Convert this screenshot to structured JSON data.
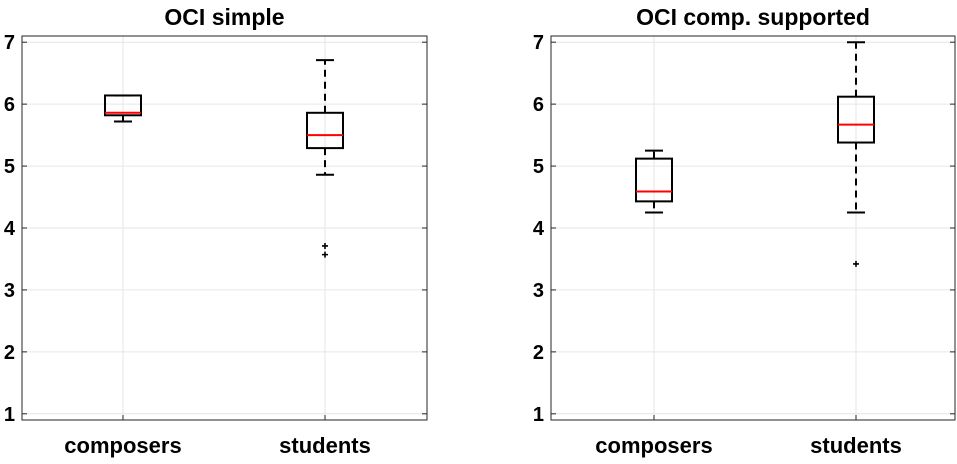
{
  "chart_data": [
    {
      "type": "box",
      "title": "OCI simple",
      "categories": [
        "composers",
        "students"
      ],
      "ylim": [
        0.9,
        7.1
      ],
      "yticks": [
        1,
        2,
        3,
        4,
        5,
        6,
        7
      ],
      "grid": true,
      "boxes": [
        {
          "category": "composers",
          "whisker_low": 5.72,
          "q1": 5.82,
          "median": 5.86,
          "q3": 6.14,
          "whisker_high": 6.14,
          "outliers": []
        },
        {
          "category": "students",
          "whisker_low": 4.86,
          "q1": 5.29,
          "median": 5.5,
          "q3": 5.86,
          "whisker_high": 6.71,
          "outliers": [
            3.57,
            3.71
          ]
        }
      ]
    },
    {
      "type": "box",
      "title": "OCI comp. supported",
      "categories": [
        "composers",
        "students"
      ],
      "ylim": [
        0.9,
        7.1
      ],
      "yticks": [
        1,
        2,
        3,
        4,
        5,
        6,
        7
      ],
      "grid": true,
      "boxes": [
        {
          "category": "composers",
          "whisker_low": 4.25,
          "q1": 4.43,
          "median": 4.59,
          "q3": 5.12,
          "whisker_high": 5.25,
          "outliers": []
        },
        {
          "category": "students",
          "whisker_low": 4.25,
          "q1": 5.38,
          "median": 5.67,
          "q3": 6.12,
          "whisker_high": 7.0,
          "outliers": [
            3.42
          ]
        }
      ]
    }
  ],
  "colors": {
    "median": "#ff0000",
    "box": "#000000",
    "grid": "#e6e6e6",
    "axes": "#262626"
  }
}
